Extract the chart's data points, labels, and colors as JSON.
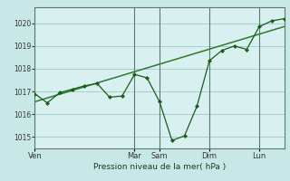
{
  "background_color": "#c8e8e8",
  "plot_bg_color": "#d8f0f0",
  "grid_color": "#a0c8c8",
  "line_color": "#1a5c1a",
  "trend_color": "#2d7a2d",
  "xlabel": "Pression niveau de la mer( hPa )",
  "ylim": [
    1014.5,
    1020.7
  ],
  "yticks": [
    1015,
    1016,
    1017,
    1018,
    1019,
    1020
  ],
  "x_day_labels": [
    "Ven",
    "Mar",
    "Sam",
    "Dim",
    "Lun"
  ],
  "x_day_positions": [
    0,
    48,
    60,
    84,
    108
  ],
  "vline_positions": [
    0,
    48,
    60,
    84,
    108
  ],
  "data_x": [
    0,
    6,
    12,
    18,
    24,
    30,
    36,
    42,
    48,
    54,
    60,
    66,
    72,
    78,
    84,
    90,
    96,
    102,
    108,
    114,
    120
  ],
  "data_y": [
    1016.9,
    1016.5,
    1016.95,
    1017.1,
    1017.25,
    1017.35,
    1016.75,
    1016.8,
    1017.75,
    1017.6,
    1016.55,
    1014.85,
    1015.05,
    1016.35,
    1018.35,
    1018.8,
    1019.0,
    1018.85,
    1019.85,
    1020.1,
    1020.2
  ],
  "trend_x": [
    0,
    120
  ],
  "trend_y": [
    1016.55,
    1019.85
  ],
  "xmin": 0,
  "xmax": 120,
  "marker_x": [
    0,
    6,
    12,
    18,
    24,
    30,
    36,
    42,
    48,
    54,
    60,
    66,
    72,
    78,
    84,
    90,
    96,
    102,
    108,
    114,
    120
  ],
  "marker_y": [
    1016.9,
    1016.5,
    1016.95,
    1017.1,
    1017.25,
    1017.35,
    1016.75,
    1016.8,
    1017.75,
    1017.6,
    1016.55,
    1014.85,
    1015.05,
    1016.35,
    1018.35,
    1018.8,
    1019.0,
    1018.85,
    1019.85,
    1020.1,
    1020.2
  ]
}
